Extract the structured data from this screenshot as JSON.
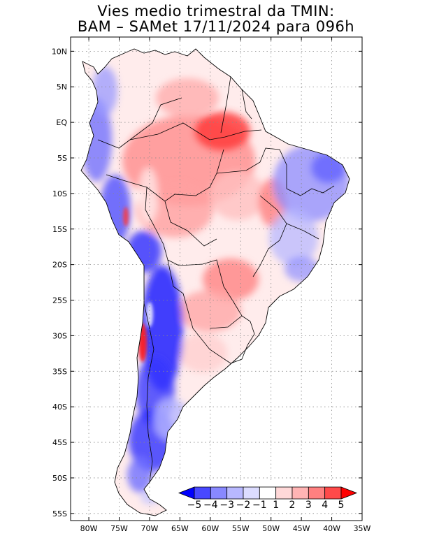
{
  "title": {
    "line1": "Vies medio trimestral da TMIN:",
    "line2": "BAM – SAMet 17/11/2024  para 096h"
  },
  "map": {
    "region": "South America",
    "lon_range": [
      -83,
      -35
    ],
    "lat_range": [
      -56,
      12
    ],
    "lat_ticks": [
      {
        "value": 10,
        "label": "10N"
      },
      {
        "value": 5,
        "label": "5N"
      },
      {
        "value": 0,
        "label": "EQ"
      },
      {
        "value": -5,
        "label": "5S"
      },
      {
        "value": -10,
        "label": "10S"
      },
      {
        "value": -15,
        "label": "15S"
      },
      {
        "value": -20,
        "label": "20S"
      },
      {
        "value": -25,
        "label": "25S"
      },
      {
        "value": -30,
        "label": "30S"
      },
      {
        "value": -35,
        "label": "35S"
      },
      {
        "value": -40,
        "label": "40S"
      },
      {
        "value": -45,
        "label": "45S"
      },
      {
        "value": -50,
        "label": "50S"
      },
      {
        "value": -55,
        "label": "55S"
      }
    ],
    "lon_ticks": [
      {
        "value": -80,
        "label": "80W"
      },
      {
        "value": -75,
        "label": "75W"
      },
      {
        "value": -70,
        "label": "70W"
      },
      {
        "value": -65,
        "label": "65W"
      },
      {
        "value": -60,
        "label": "60W"
      },
      {
        "value": -55,
        "label": "55W"
      },
      {
        "value": -50,
        "label": "50W"
      },
      {
        "value": -45,
        "label": "45W"
      },
      {
        "value": -40,
        "label": "40W"
      },
      {
        "value": -35,
        "label": "35W"
      }
    ]
  },
  "colorbar": {
    "labels": [
      "−5",
      "−4",
      "−3",
      "−2",
      "−1",
      "1",
      "2",
      "3",
      "4",
      "5"
    ],
    "colors": [
      "#0000ff",
      "#4848ff",
      "#8888ff",
      "#b8b8ff",
      "#dcdcff",
      "#ffffff",
      "#ffd8d8",
      "#ffb4b4",
      "#ff8080",
      "#ff4a4a",
      "#ff0000"
    ]
  }
}
